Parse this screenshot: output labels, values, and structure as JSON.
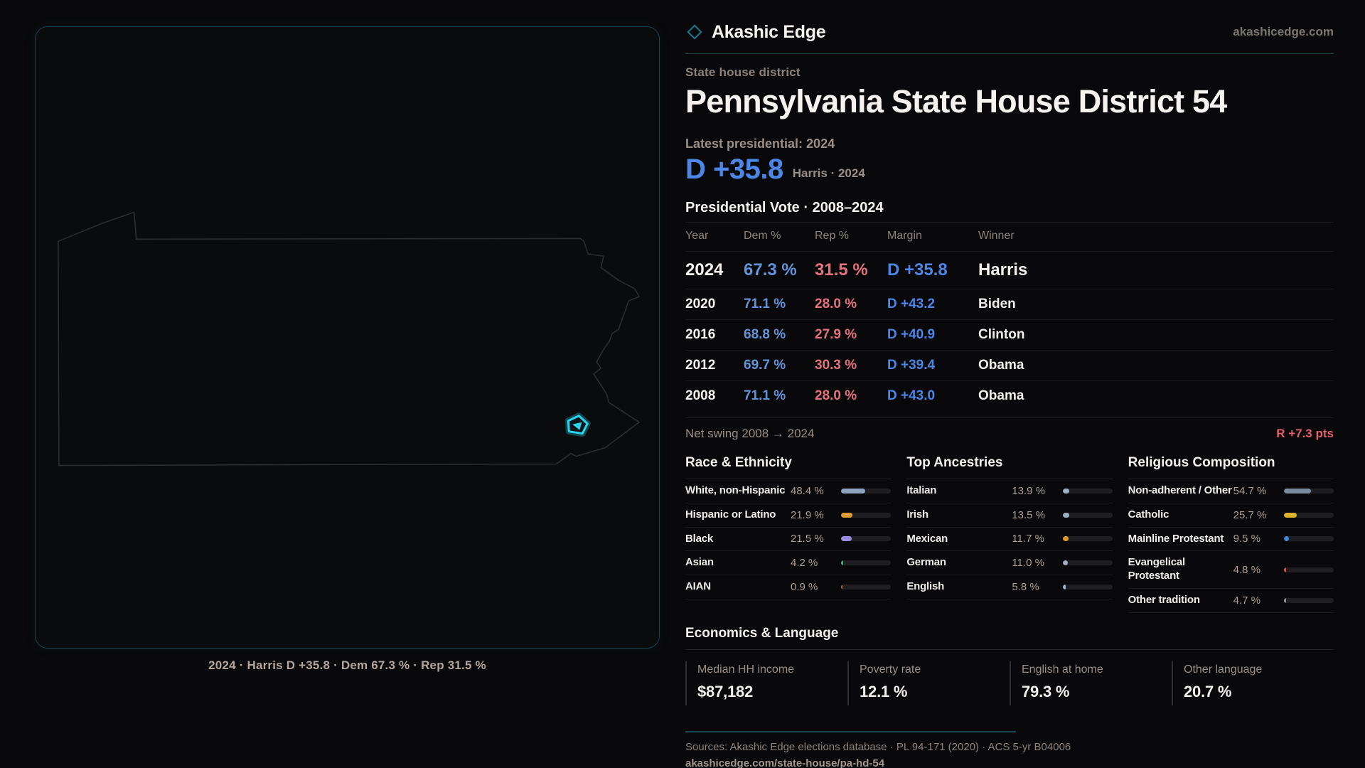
{
  "brand": {
    "name": "Akashic Edge",
    "domain": "akashicedge.com",
    "accent_teal": "#1a7a8a"
  },
  "header": {
    "kicker": "State house district",
    "title": "Pennsylvania State House District 54",
    "latest_label": "Latest presidential: 2024",
    "headline_margin": "D +35.8",
    "headline_context": "Harris · 2024"
  },
  "map": {
    "caption": "2024 · Harris D +35.8 · Dem 67.3 % · Rep 31.5 %",
    "outline_color": "#2d2d31",
    "district_color": "#29d6ef"
  },
  "vote_table": {
    "title": "Presidential Vote · 2008–2024",
    "columns": [
      "Year",
      "Dem %",
      "Rep %",
      "Margin",
      "Winner"
    ],
    "rows": [
      {
        "year": "2024",
        "dem": "67.3 %",
        "rep": "31.5 %",
        "margin": "D +35.8",
        "winner": "Harris",
        "latest": true
      },
      {
        "year": "2020",
        "dem": "71.1 %",
        "rep": "28.0 %",
        "margin": "D +43.2",
        "winner": "Biden",
        "latest": false
      },
      {
        "year": "2016",
        "dem": "68.8 %",
        "rep": "27.9 %",
        "margin": "D +40.9",
        "winner": "Clinton",
        "latest": false
      },
      {
        "year": "2012",
        "dem": "69.7 %",
        "rep": "30.3 %",
        "margin": "D +39.4",
        "winner": "Obama",
        "latest": false
      },
      {
        "year": "2008",
        "dem": "71.1 %",
        "rep": "28.0 %",
        "margin": "D +43.0",
        "winner": "Obama",
        "latest": false
      }
    ]
  },
  "net_swing": {
    "label": "Net swing 2008 → 2024",
    "value": "R +7.3 pts",
    "value_color": "#e45f6b"
  },
  "demographics": [
    {
      "title": "Race & Ethnicity",
      "rows": [
        {
          "label": "White, non-Hispanic",
          "value": "48.4 %",
          "pct": 48.4,
          "color": "#8ea3bd"
        },
        {
          "label": "Hispanic or Latino",
          "value": "21.9 %",
          "pct": 21.9,
          "color": "#dd9b2f"
        },
        {
          "label": "Black",
          "value": "21.5 %",
          "pct": 21.5,
          "color": "#9c8ce2"
        },
        {
          "label": "Asian",
          "value": "4.2 %",
          "pct": 4.2,
          "color": "#1fb877"
        },
        {
          "label": "AIAN",
          "value": "0.9 %",
          "pct": 0.9,
          "color": "#c06a2a"
        }
      ]
    },
    {
      "title": "Top Ancestries",
      "rows": [
        {
          "label": "Italian",
          "value": "13.9 %",
          "pct": 13.9,
          "color": "#9fb0c4"
        },
        {
          "label": "Irish",
          "value": "13.5 %",
          "pct": 13.5,
          "color": "#9fb0c4"
        },
        {
          "label": "Mexican",
          "value": "11.7 %",
          "pct": 11.7,
          "color": "#e39a26"
        },
        {
          "label": "German",
          "value": "11.0 %",
          "pct": 11.0,
          "color": "#9fb0c4"
        },
        {
          "label": "English",
          "value": "5.8 %",
          "pct": 5.8,
          "color": "#9fb0c4"
        }
      ]
    },
    {
      "title": "Religious Composition",
      "rows": [
        {
          "label": "Non-adherent / Other",
          "value": "54.7 %",
          "pct": 54.7,
          "color": "#7b8b9e"
        },
        {
          "label": "Catholic",
          "value": "25.7 %",
          "pct": 25.7,
          "color": "#ddb32a"
        },
        {
          "label": "Mainline Protestant",
          "value": "9.5 %",
          "pct": 9.5,
          "color": "#3f86e0"
        },
        {
          "label": "Evangelical Protestant",
          "value": "4.8 %",
          "pct": 4.8,
          "color": "#cf4f55"
        },
        {
          "label": "Other tradition",
          "value": "4.7 %",
          "pct": 4.7,
          "color": "#8d949c"
        }
      ]
    }
  ],
  "economics": {
    "title": "Economics & Language",
    "stats": [
      {
        "label": "Median HH income",
        "value": "$87,182"
      },
      {
        "label": "Poverty rate",
        "value": "12.1 %"
      },
      {
        "label": "English at home",
        "value": "79.3 %"
      },
      {
        "label": "Other language",
        "value": "20.7 %"
      }
    ]
  },
  "sources": {
    "line": "Sources: Akashic Edge elections database · PL 94-171 (2020) · ACS 5-yr B04006",
    "url": "akashicedge.com/state-house/pa-hd-54"
  }
}
